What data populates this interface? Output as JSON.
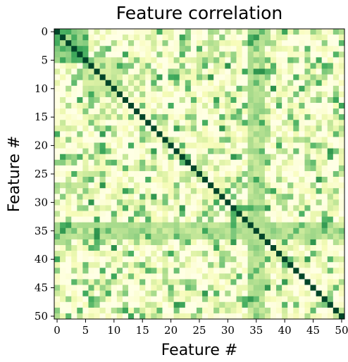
{
  "chart_data": {
    "type": "heatmap",
    "title": "Feature correlation",
    "xlabel": "Feature #",
    "ylabel": "Feature #",
    "n": 51,
    "x_ticks": [
      0,
      5,
      10,
      15,
      20,
      25,
      30,
      35,
      40,
      45,
      50
    ],
    "y_ticks": [
      0,
      5,
      10,
      15,
      20,
      25,
      30,
      35,
      40,
      45,
      50
    ],
    "colormap": "Greens",
    "value_range": [
      0,
      1
    ],
    "diagonal_value": 1.0,
    "colors": {
      "low": "#ffffe5",
      "mid": "#78c679",
      "high": "#004529"
    },
    "strong_blocks": [
      {
        "rows": [
          0,
          5
        ],
        "cols": [
          0,
          5
        ],
        "value": 0.8
      },
      {
        "rows": [
          5,
          11
        ],
        "cols": [
          5,
          11
        ],
        "value": 0.45
      },
      {
        "rows": [
          34,
          36
        ],
        "cols": [
          0,
          50
        ],
        "value": 0.55
      },
      {
        "rows": [
          0,
          50
        ],
        "cols": [
          34,
          36
        ],
        "value": 0.55
      }
    ],
    "notes": "Symmetric 51x51 feature correlation matrix; diagonal = 1."
  }
}
